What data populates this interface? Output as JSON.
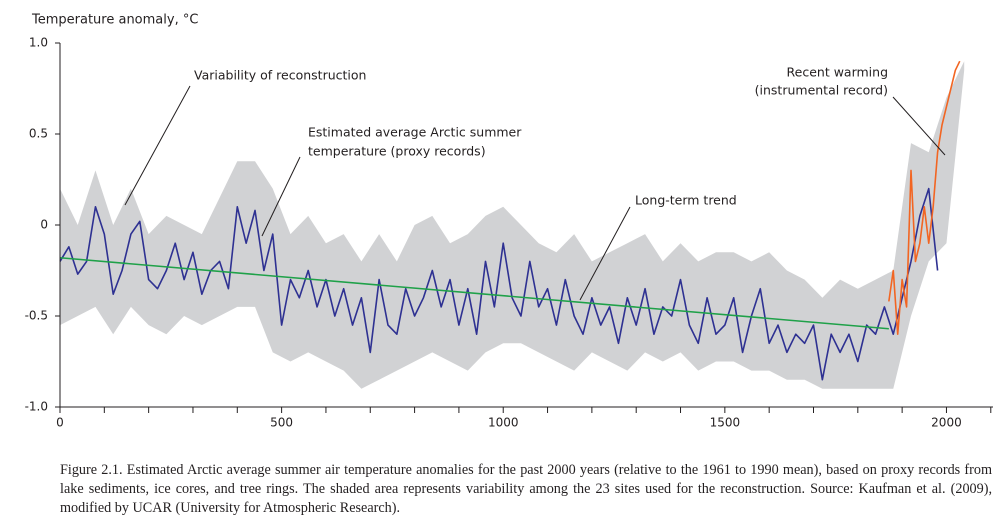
{
  "chart_data": {
    "type": "line",
    "y_axis_label": "Temperature anomaly, °C",
    "xlim": [
      0,
      2105
    ],
    "ylim": [
      -1.0,
      1.0
    ],
    "xticks": [
      0,
      500,
      1000,
      1500,
      2000
    ],
    "xminorticks": [
      100,
      200,
      300,
      400,
      600,
      700,
      800,
      900,
      1100,
      1200,
      1300,
      1400,
      1600,
      1700,
      1800,
      1900,
      2100
    ],
    "yticks": [
      {
        "value": -1.0,
        "label": "-1.0"
      },
      -0.5,
      0,
      0.5,
      {
        "value": 1.0,
        "label": "1.0"
      }
    ],
    "band": {
      "color": "#d1d2d4",
      "x": [
        0,
        40,
        80,
        120,
        160,
        200,
        240,
        280,
        320,
        360,
        400,
        440,
        480,
        520,
        560,
        600,
        640,
        680,
        720,
        760,
        800,
        840,
        880,
        920,
        960,
        1000,
        1040,
        1080,
        1120,
        1160,
        1200,
        1240,
        1280,
        1320,
        1360,
        1400,
        1440,
        1480,
        1520,
        1560,
        1600,
        1640,
        1680,
        1720,
        1760,
        1800,
        1840,
        1880,
        1920,
        1960,
        2000,
        2040
      ],
      "upper": [
        0.2,
        0.0,
        0.3,
        0.0,
        0.2,
        -0.05,
        0.05,
        0.0,
        -0.05,
        0.15,
        0.35,
        0.35,
        0.2,
        -0.05,
        0.05,
        -0.1,
        -0.05,
        -0.2,
        -0.05,
        -0.2,
        0.0,
        0.05,
        -0.1,
        -0.05,
        0.05,
        0.1,
        0.0,
        -0.1,
        -0.15,
        -0.05,
        -0.2,
        -0.15,
        -0.1,
        -0.05,
        -0.2,
        -0.1,
        -0.2,
        -0.15,
        -0.15,
        -0.2,
        -0.15,
        -0.25,
        -0.3,
        -0.4,
        -0.3,
        -0.35,
        -0.3,
        -0.25,
        0.45,
        0.4,
        0.7,
        0.9
      ],
      "lower": [
        -0.55,
        -0.5,
        -0.45,
        -0.6,
        -0.45,
        -0.55,
        -0.6,
        -0.5,
        -0.55,
        -0.5,
        -0.45,
        -0.45,
        -0.7,
        -0.75,
        -0.7,
        -0.75,
        -0.8,
        -0.9,
        -0.85,
        -0.8,
        -0.75,
        -0.7,
        -0.75,
        -0.8,
        -0.7,
        -0.65,
        -0.65,
        -0.7,
        -0.75,
        -0.8,
        -0.7,
        -0.75,
        -0.8,
        -0.7,
        -0.75,
        -0.7,
        -0.8,
        -0.75,
        -0.75,
        -0.8,
        -0.8,
        -0.85,
        -0.85,
        -0.9,
        -0.9,
        -0.9,
        -0.9,
        -0.9,
        -0.5,
        -0.2,
        -0.1,
        0.85
      ]
    },
    "series": [
      {
        "name": "Proxy records",
        "color": "#2e3192",
        "x": [
          0,
          20,
          40,
          60,
          80,
          100,
          120,
          140,
          160,
          180,
          200,
          220,
          240,
          260,
          280,
          300,
          320,
          340,
          360,
          380,
          400,
          420,
          440,
          460,
          480,
          500,
          520,
          540,
          560,
          580,
          600,
          620,
          640,
          660,
          680,
          700,
          720,
          740,
          760,
          780,
          800,
          820,
          840,
          860,
          880,
          900,
          920,
          940,
          960,
          980,
          1000,
          1020,
          1040,
          1060,
          1080,
          1100,
          1120,
          1140,
          1160,
          1180,
          1200,
          1220,
          1240,
          1260,
          1280,
          1300,
          1320,
          1340,
          1360,
          1380,
          1400,
          1420,
          1440,
          1460,
          1480,
          1500,
          1520,
          1540,
          1560,
          1580,
          1600,
          1620,
          1640,
          1660,
          1680,
          1700,
          1720,
          1740,
          1760,
          1780,
          1800,
          1820,
          1840,
          1860,
          1880,
          1900,
          1920,
          1940,
          1960,
          1980
        ],
        "values": [
          -0.2,
          -0.12,
          -0.27,
          -0.2,
          0.1,
          -0.05,
          -0.38,
          -0.25,
          -0.05,
          0.02,
          -0.3,
          -0.35,
          -0.25,
          -0.1,
          -0.3,
          -0.15,
          -0.38,
          -0.25,
          -0.2,
          -0.35,
          0.1,
          -0.1,
          0.08,
          -0.25,
          -0.05,
          -0.55,
          -0.3,
          -0.4,
          -0.25,
          -0.45,
          -0.3,
          -0.5,
          -0.35,
          -0.55,
          -0.4,
          -0.7,
          -0.3,
          -0.55,
          -0.6,
          -0.35,
          -0.5,
          -0.4,
          -0.25,
          -0.45,
          -0.3,
          -0.55,
          -0.35,
          -0.6,
          -0.2,
          -0.45,
          -0.1,
          -0.4,
          -0.5,
          -0.2,
          -0.45,
          -0.35,
          -0.55,
          -0.3,
          -0.5,
          -0.6,
          -0.4,
          -0.55,
          -0.45,
          -0.65,
          -0.4,
          -0.55,
          -0.35,
          -0.6,
          -0.45,
          -0.5,
          -0.3,
          -0.55,
          -0.65,
          -0.4,
          -0.6,
          -0.55,
          -0.4,
          -0.7,
          -0.5,
          -0.35,
          -0.65,
          -0.55,
          -0.7,
          -0.6,
          -0.65,
          -0.55,
          -0.85,
          -0.6,
          -0.7,
          -0.6,
          -0.75,
          -0.55,
          -0.6,
          -0.45,
          -0.6,
          -0.4,
          -0.2,
          0.05,
          0.2,
          -0.25
        ]
      },
      {
        "name": "Long-term trend",
        "color": "#1fa149",
        "x": [
          0,
          1870
        ],
        "values": [
          -0.18,
          -0.57
        ]
      },
      {
        "name": "Instrumental record",
        "color": "#f26522",
        "x": [
          1870,
          1880,
          1890,
          1900,
          1910,
          1920,
          1930,
          1940,
          1950,
          1960,
          1970,
          1980,
          1990,
          2000,
          2010,
          2020,
          2030
        ],
        "values": [
          -0.42,
          -0.25,
          -0.6,
          -0.3,
          -0.45,
          0.3,
          -0.2,
          -0.1,
          0.1,
          -0.1,
          0.1,
          0.4,
          0.55,
          0.65,
          0.75,
          0.85,
          0.9
        ]
      }
    ],
    "annotations": [
      {
        "text": [
          "Variability of reconstruction"
        ]
      },
      {
        "text": [
          "Estimated average Arctic summer",
          "temperature (proxy records)"
        ]
      },
      {
        "text": [
          "Long-term trend"
        ]
      },
      {
        "text": [
          "Recent warming",
          "(instrumental record)"
        ]
      }
    ],
    "caption": "Figure 2.1. Estimated Arctic average summer air temperature anomalies for the past 2000 years (relative to the 1961 to 1990 mean), based on proxy records from lake sediments, ice cores, and tree rings. The shaded area represents variability among the 23 sites used for the reconstruction. Source: Kaufman et al. (2009), modified by UCAR (University for Atmospheric Research)."
  }
}
